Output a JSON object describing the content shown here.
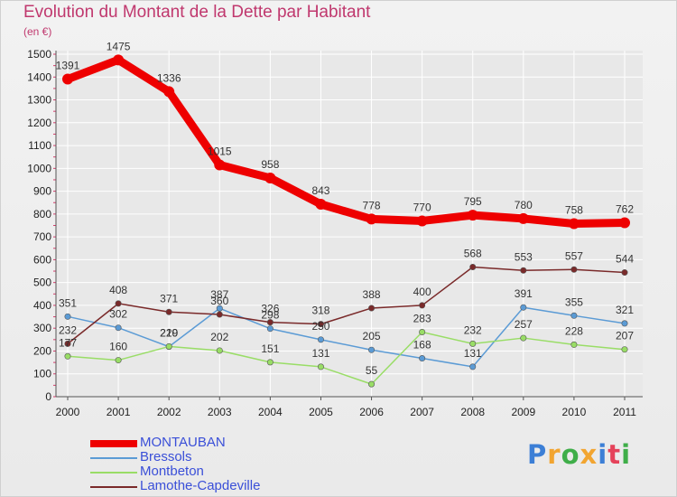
{
  "chart_data": {
    "type": "line",
    "title": "Evolution du Montant de la Dette par Habitant",
    "unit_label": "(en €)",
    "xlabel": "",
    "ylabel": "",
    "x": [
      "2000",
      "2001",
      "2002",
      "2003",
      "2004",
      "2005",
      "2006",
      "2007",
      "2008",
      "2009",
      "2010",
      "2011"
    ],
    "ylim": [
      0,
      1500
    ],
    "yticks": [
      0,
      100,
      200,
      300,
      400,
      500,
      600,
      700,
      800,
      900,
      1000,
      1100,
      1200,
      1300,
      1400,
      1500
    ],
    "grid": true,
    "legend_position": "bottom-left",
    "series": [
      {
        "name": "MONTAUBAN",
        "color": "#ee0000",
        "values": [
          1391,
          1475,
          1336,
          1015,
          958,
          843,
          778,
          770,
          795,
          780,
          758,
          762
        ],
        "labels": [
          "1391",
          "1475",
          "1336",
          "1015",
          "958",
          "843",
          "778",
          "770",
          "795",
          "780",
          "758",
          "762"
        ]
      },
      {
        "name": "Bressols",
        "color": "#5b9bd5",
        "values": [
          351,
          302,
          219,
          387,
          298,
          250,
          205,
          168,
          131,
          391,
          355,
          321
        ],
        "labels": [
          "351",
          "302",
          "219",
          "387",
          "298",
          "250",
          "205",
          "168",
          "131",
          "391",
          "355",
          "321"
        ]
      },
      {
        "name": "Montbeton",
        "color": "#99dd66",
        "values": [
          177,
          160,
          220,
          202,
          151,
          131,
          55,
          283,
          232,
          257,
          228,
          207
        ],
        "labels": [
          "177",
          "160",
          "220",
          "202",
          "151",
          "131",
          "55",
          "283",
          "232",
          "257",
          "228",
          "207"
        ]
      },
      {
        "name": "Lamothe-Capdeville",
        "color": "#7a2a2a",
        "values": [
          232,
          408,
          371,
          360,
          326,
          318,
          388,
          400,
          568,
          553,
          557,
          544
        ],
        "labels": [
          "232",
          "408",
          "371",
          "360",
          "326",
          "318",
          "388",
          "400",
          "568",
          "553",
          "557",
          "544"
        ]
      }
    ]
  },
  "brand": {
    "letters": [
      "P",
      "r",
      "o",
      "x",
      "i",
      "t",
      "i"
    ],
    "colors": [
      "#3c7fd6",
      "#f2a531",
      "#3fae49",
      "#f2a531",
      "#3c7fd6",
      "#e5425a",
      "#3fae49"
    ]
  }
}
